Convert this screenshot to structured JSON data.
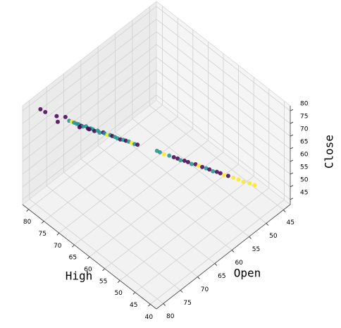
{
  "chart_data": {
    "type": "scatter3d",
    "xlabel": "High",
    "ylabel": "Open",
    "zlabel": "Close",
    "xlim": [
      38,
      82
    ],
    "ylim": [
      43,
      82
    ],
    "zlim": [
      43,
      82
    ],
    "xticks": [
      40,
      45,
      50,
      55,
      60,
      65,
      70,
      75,
      80
    ],
    "yticks": [
      45,
      50,
      55,
      60,
      65,
      70,
      75,
      80
    ],
    "zticks": [
      45,
      50,
      55,
      60,
      65,
      70,
      75,
      80
    ],
    "grid": true,
    "series": [
      {
        "x": [
          79.5,
          78.6,
          77,
          76.3,
          75.8,
          75,
          74.6,
          74.2,
          73.8,
          73.5,
          73.1,
          72.8,
          72.4,
          72,
          71.7,
          71.3,
          71,
          70.6,
          70.2,
          69.8,
          69.5,
          69,
          68.6,
          68.3,
          67.9,
          67.5,
          67,
          66.6,
          66.2,
          65.8,
          65.3,
          64.8,
          64.4,
          74,
          72.5,
          61.5,
          61,
          60.3,
          59.5,
          58.8,
          58.2,
          57.7,
          57.2,
          56.6,
          56,
          55.5,
          55,
          54.4,
          53.8,
          53.3,
          52.7,
          52.2,
          51.6,
          51,
          50.4,
          49.6,
          48.8,
          48,
          47.1,
          46.3
        ],
        "y": [
          79,
          78.4,
          76.5,
          76.8,
          75,
          74.6,
          74.2,
          73.9,
          73.5,
          73.2,
          72.8,
          72.6,
          72,
          71.8,
          71.3,
          71,
          70.8,
          70.2,
          70,
          69.3,
          69.2,
          68.8,
          68.3,
          68,
          67.6,
          67.2,
          66.8,
          66.3,
          65.9,
          65.4,
          65,
          64.6,
          64.1,
          72.5,
          71,
          61,
          60.6,
          60,
          59.2,
          58.5,
          57.9,
          57.5,
          56.8,
          56.3,
          55.8,
          55.1,
          54.6,
          54.1,
          53.5,
          53,
          52.5,
          51.8,
          51.3,
          50.8,
          50.1,
          49.3,
          48.5,
          47.8,
          46.8,
          46
        ],
        "z": [
          79.8,
          78.9,
          76.8,
          75.5,
          76,
          74.8,
          74.5,
          74.1,
          73.6,
          73.4,
          72.7,
          72.5,
          72.3,
          71.6,
          71.4,
          71.1,
          70.5,
          70.4,
          69.8,
          69.5,
          69.3,
          68.7,
          68.5,
          68.1,
          67.7,
          67.1,
          66.7,
          66.4,
          66,
          65.5,
          65.1,
          64.6,
          64.2,
          71,
          70,
          61.2,
          60.7,
          59.9,
          59.3,
          58.6,
          58,
          57.4,
          56.9,
          56.4,
          55.7,
          55.3,
          54.7,
          54.2,
          53.6,
          53.1,
          52.4,
          51.9,
          51.4,
          50.7,
          50.2,
          49.4,
          48.6,
          47.7,
          46.9,
          46.1
        ],
        "colors": [
          "#440154",
          "#440154",
          "#440154",
          "#440154",
          "#440154",
          "#21918c",
          "#fde725",
          "#21918c",
          "#21918c",
          "#21918c",
          "#440154",
          "#21918c",
          "#21918c",
          "#440154",
          "#21918c",
          "#21918c",
          "#440154",
          "#21918c",
          "#21918c",
          "#440154",
          "#21918c",
          "#fde725",
          "#21918c",
          "#440154",
          "#21918c",
          "#21918c",
          "#440154",
          "#21918c",
          "#440154",
          "#21918c",
          "#fde725",
          "#21918c",
          "#440154",
          "#440154",
          "#440154",
          "#21918c",
          "#21918c",
          "#fde725",
          "#21918c",
          "#440154",
          "#440154",
          "#21918c",
          "#440154",
          "#440154",
          "#21918c",
          "#440154",
          "#fde725",
          "#440154",
          "#21918c",
          "#440154",
          "#21918c",
          "#440154",
          "#440154",
          "#fde725",
          "#440154",
          "#fde725",
          "#fde725",
          "#fde725",
          "#fde725",
          "#fde725"
        ]
      }
    ]
  }
}
